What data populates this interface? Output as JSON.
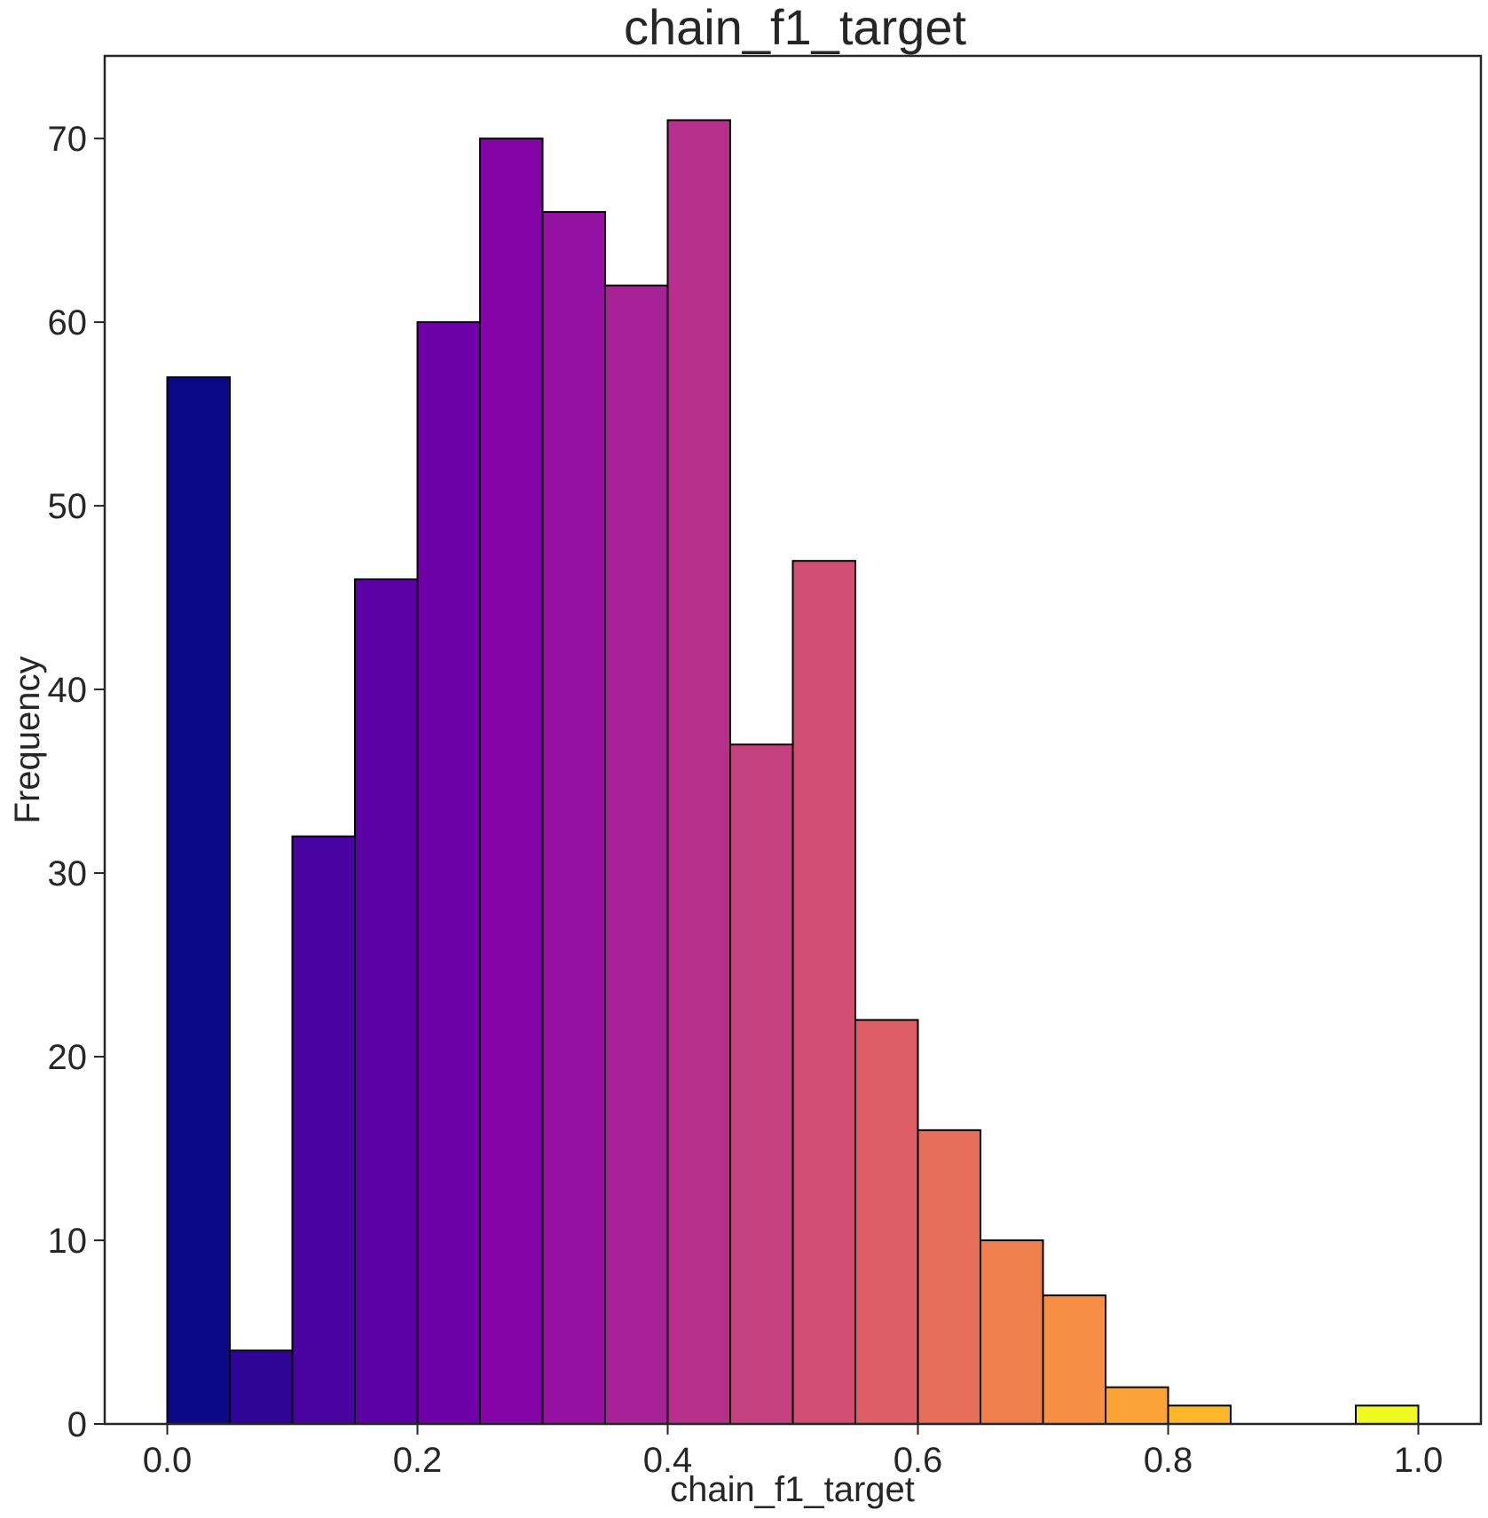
{
  "chart_data": {
    "type": "bar",
    "title": "chain_f1_target",
    "xlabel": "chain_f1_target",
    "ylabel": "Frequency",
    "bin_edges": [
      0.0,
      0.05,
      0.1,
      0.15,
      0.2,
      0.25,
      0.3,
      0.35,
      0.4,
      0.45,
      0.5,
      0.55,
      0.6,
      0.65,
      0.7,
      0.75,
      0.8,
      0.85,
      0.9,
      0.95,
      1.0
    ],
    "values": [
      57,
      4,
      32,
      46,
      60,
      70,
      66,
      62,
      71,
      37,
      47,
      22,
      16,
      10,
      7,
      2,
      1,
      0,
      0,
      1
    ],
    "colors": [
      "#0d0887",
      "#2f0596",
      "#4903a0",
      "#5c01a6",
      "#6e00a8",
      "#8305a7",
      "#9511a1",
      "#a72197",
      "#b6308b",
      "#c5407e",
      "#d14e72",
      "#dd5e66",
      "#e76e5b",
      "#f07f4f",
      "#f79044",
      "#fca338",
      "#feb72d",
      "#fccd25",
      "#f7e225",
      "#f0f921"
    ],
    "xlim": [
      -0.05,
      1.05
    ],
    "ylim": [
      0,
      74.5
    ],
    "xticks": [
      0.0,
      0.2,
      0.4,
      0.6,
      0.8,
      1.0
    ],
    "xtick_labels": [
      "0.0",
      "0.2",
      "0.4",
      "0.6",
      "0.8",
      "1.0"
    ],
    "yticks": [
      0,
      10,
      20,
      30,
      40,
      50,
      60,
      70
    ],
    "ytick_labels": [
      "0",
      "10",
      "20",
      "30",
      "40",
      "50",
      "60",
      "70"
    ],
    "grid": false,
    "bar_edge_color": "#000000"
  }
}
